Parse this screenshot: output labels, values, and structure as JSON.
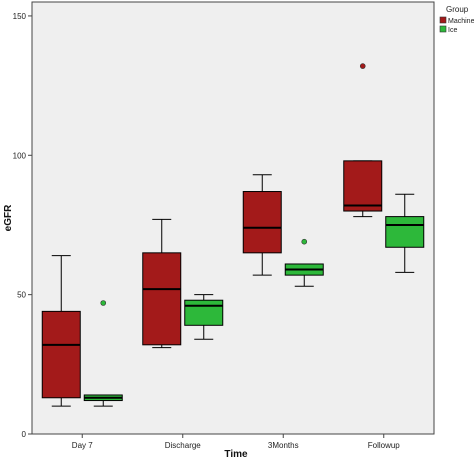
{
  "chart_data": {
    "type": "boxplot",
    "xlabel": "Time",
    "ylabel": "eGFR",
    "ylim": [
      0,
      155
    ],
    "yticks": [
      0,
      50,
      100,
      150
    ],
    "categories": [
      "Day 7",
      "Discharge",
      "3Months",
      "Followup"
    ],
    "grid": false,
    "legend": {
      "title": "Group",
      "placement": "top-right",
      "entries": [
        {
          "name": "Machine",
          "color": "#a31a1a"
        },
        {
          "name": "Ice",
          "color": "#2db83a"
        }
      ]
    },
    "series": [
      {
        "name": "Machine",
        "color": "#a31a1a",
        "boxes": [
          {
            "min": 10,
            "q1": 13,
            "median": 32,
            "q3": 44,
            "max": 64,
            "outliers": []
          },
          {
            "min": 31,
            "q1": 32,
            "median": 52,
            "q3": 65,
            "max": 77,
            "outliers": []
          },
          {
            "min": 57,
            "q1": 65,
            "median": 74,
            "q3": 87,
            "max": 93,
            "outliers": []
          },
          {
            "min": 78,
            "q1": 80,
            "median": 82,
            "q3": 98,
            "max": 98,
            "outliers": [
              132
            ]
          }
        ]
      },
      {
        "name": "Ice",
        "color": "#2db83a",
        "boxes": [
          {
            "min": 10,
            "q1": 12,
            "median": 13,
            "q3": 14,
            "max": 14,
            "outliers": [
              47
            ]
          },
          {
            "min": 34,
            "q1": 39,
            "median": 46,
            "q3": 48,
            "max": 50,
            "outliers": []
          },
          {
            "min": 53,
            "q1": 57,
            "median": 59,
            "q3": 61,
            "max": 61,
            "outliers": [
              69
            ]
          },
          {
            "min": 58,
            "q1": 67,
            "median": 75,
            "q3": 78,
            "max": 86,
            "outliers": []
          }
        ]
      }
    ]
  }
}
